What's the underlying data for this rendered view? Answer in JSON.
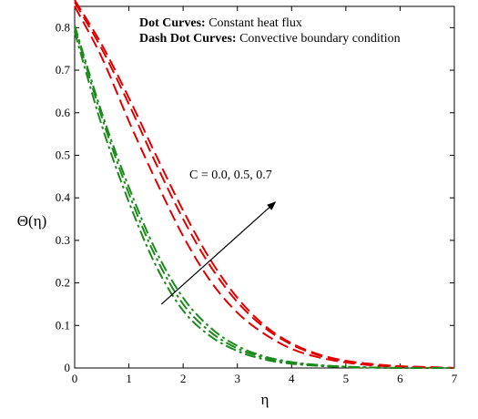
{
  "chart_data": {
    "type": "line",
    "xlabel": "η",
    "ylabel": "Θ(η)",
    "xlim": [
      0,
      7
    ],
    "ylim": [
      0,
      0.85
    ],
    "xticks": [
      0,
      1,
      2,
      3,
      4,
      5,
      6,
      7
    ],
    "yticks": [
      0,
      0.1,
      0.2,
      0.3,
      0.4,
      0.5,
      0.6,
      0.7,
      0.8
    ],
    "legend": {
      "placement": "top-right",
      "lines": [
        {
          "bold": "Dot Curves:",
          "text": " Constant heat flux"
        },
        {
          "bold": "Dash Dot Curves:",
          "text": " Convective boundary condition"
        }
      ]
    },
    "annotation": {
      "text": "C = 0.0, 0.5, 0.7",
      "arrow_from": [
        1.6,
        0.15
      ],
      "arrow_to": [
        3.7,
        0.39
      ]
    },
    "series": [
      {
        "color": "#e00000",
        "style": "dash",
        "x": [
          0,
          0.5,
          1,
          1.5,
          2,
          2.5,
          3,
          3.5,
          4,
          4.5,
          5,
          5.5,
          6,
          6.5,
          7
        ],
        "y": [
          0.85,
          0.73,
          0.58,
          0.44,
          0.31,
          0.205,
          0.13,
          0.08,
          0.045,
          0.025,
          0.013,
          0.006,
          0.003,
          0.001,
          0.0
        ]
      },
      {
        "color": "#e00000",
        "style": "dash",
        "x": [
          0,
          0.5,
          1,
          1.5,
          2,
          2.5,
          3,
          3.5,
          4,
          4.5,
          5,
          5.5,
          6,
          6.5,
          7
        ],
        "y": [
          0.86,
          0.75,
          0.62,
          0.48,
          0.35,
          0.24,
          0.155,
          0.095,
          0.055,
          0.03,
          0.016,
          0.008,
          0.004,
          0.002,
          0.0
        ]
      },
      {
        "color": "#e00000",
        "style": "dash",
        "x": [
          0,
          0.5,
          1,
          1.5,
          2,
          2.5,
          3,
          3.5,
          4,
          4.5,
          5,
          5.5,
          6,
          6.5,
          7
        ],
        "y": [
          0.865,
          0.76,
          0.635,
          0.5,
          0.37,
          0.255,
          0.165,
          0.1,
          0.058,
          0.032,
          0.017,
          0.009,
          0.004,
          0.002,
          0.0
        ]
      },
      {
        "color": "#1a8a1a",
        "style": "dashdot",
        "x": [
          0,
          0.5,
          1,
          1.5,
          2,
          2.5,
          3,
          3.5,
          4,
          4.5,
          5,
          5.5,
          6,
          6.5,
          7
        ],
        "y": [
          0.79,
          0.57,
          0.39,
          0.24,
          0.135,
          0.075,
          0.04,
          0.02,
          0.01,
          0.005,
          0.002,
          0.001,
          0.0,
          0.0,
          0.0
        ]
      },
      {
        "color": "#1a8a1a",
        "style": "dashdot",
        "x": [
          0,
          0.5,
          1,
          1.5,
          2,
          2.5,
          3,
          3.5,
          4,
          4.5,
          5,
          5.5,
          6,
          6.5,
          7
        ],
        "y": [
          0.8,
          0.59,
          0.41,
          0.26,
          0.15,
          0.085,
          0.046,
          0.024,
          0.012,
          0.006,
          0.003,
          0.001,
          0.0,
          0.0,
          0.0
        ]
      },
      {
        "color": "#1a8a1a",
        "style": "dashdot",
        "x": [
          0,
          0.5,
          1,
          1.5,
          2,
          2.5,
          3,
          3.5,
          4,
          4.5,
          5,
          5.5,
          6,
          6.5,
          7
        ],
        "y": [
          0.805,
          0.6,
          0.425,
          0.275,
          0.165,
          0.095,
          0.052,
          0.027,
          0.014,
          0.007,
          0.003,
          0.001,
          0.0,
          0.0,
          0.0
        ]
      }
    ]
  }
}
